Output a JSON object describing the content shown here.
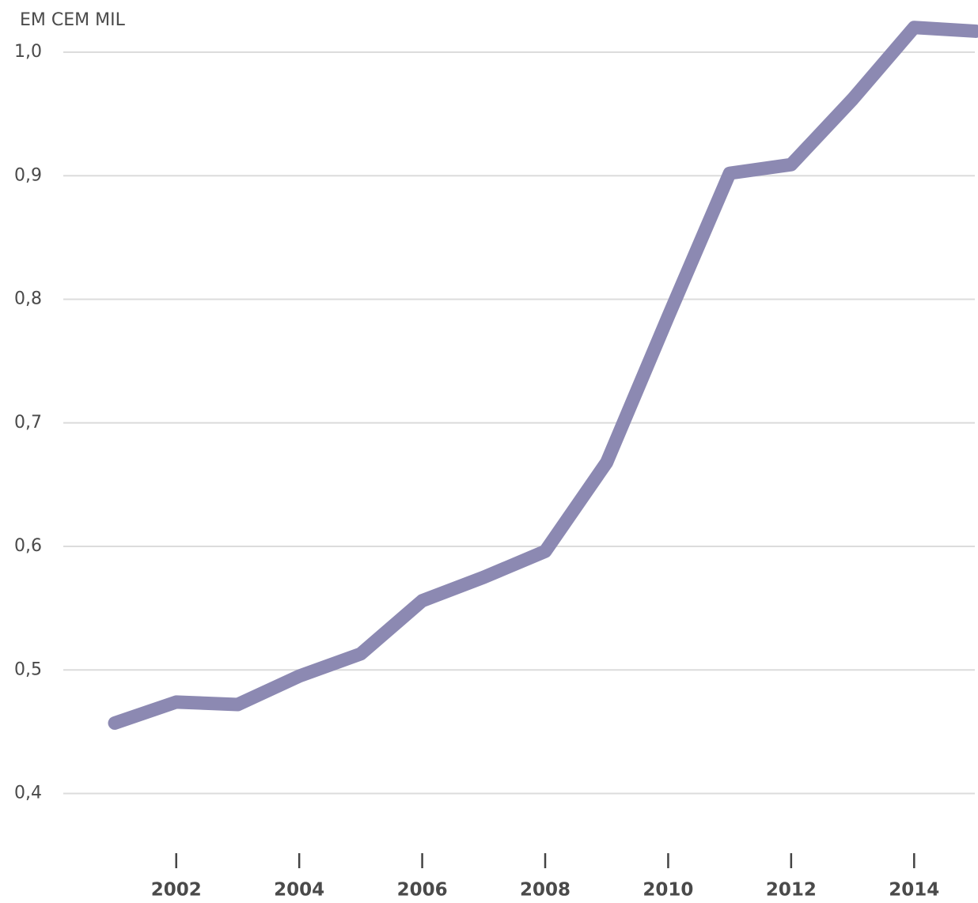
{
  "chart_data": {
    "type": "line",
    "y_axis_label": "EM CEM MIL",
    "x": [
      2001,
      2002,
      2003,
      2004,
      2005,
      2006,
      2007,
      2008,
      2009,
      2010,
      2011,
      2012,
      2013,
      2014,
      2015
    ],
    "series": [
      {
        "color": "#8c89b2",
        "values": [
          0.457,
          0.474,
          0.472,
          0.495,
          0.513,
          0.556,
          0.575,
          0.596,
          0.668,
          0.786,
          0.902,
          0.909,
          0.962,
          1.02,
          1.017
        ]
      }
    ],
    "xlim": [
      2000,
      2015
    ],
    "xticks": [
      2002,
      2004,
      2006,
      2008,
      2010,
      2012,
      2014
    ],
    "ylim": [
      0.36,
      1.04
    ],
    "yticks": [
      {
        "value": 0.4,
        "label": "0,4"
      },
      {
        "value": 0.5,
        "label": "0,5"
      },
      {
        "value": 0.6,
        "label": "0,6"
      },
      {
        "value": 0.7,
        "label": "0,7"
      },
      {
        "value": 0.8,
        "label": "0,8"
      },
      {
        "value": 0.9,
        "label": "0,9"
      },
      {
        "value": 1.0,
        "label": "1,0"
      }
    ],
    "grid": true
  }
}
